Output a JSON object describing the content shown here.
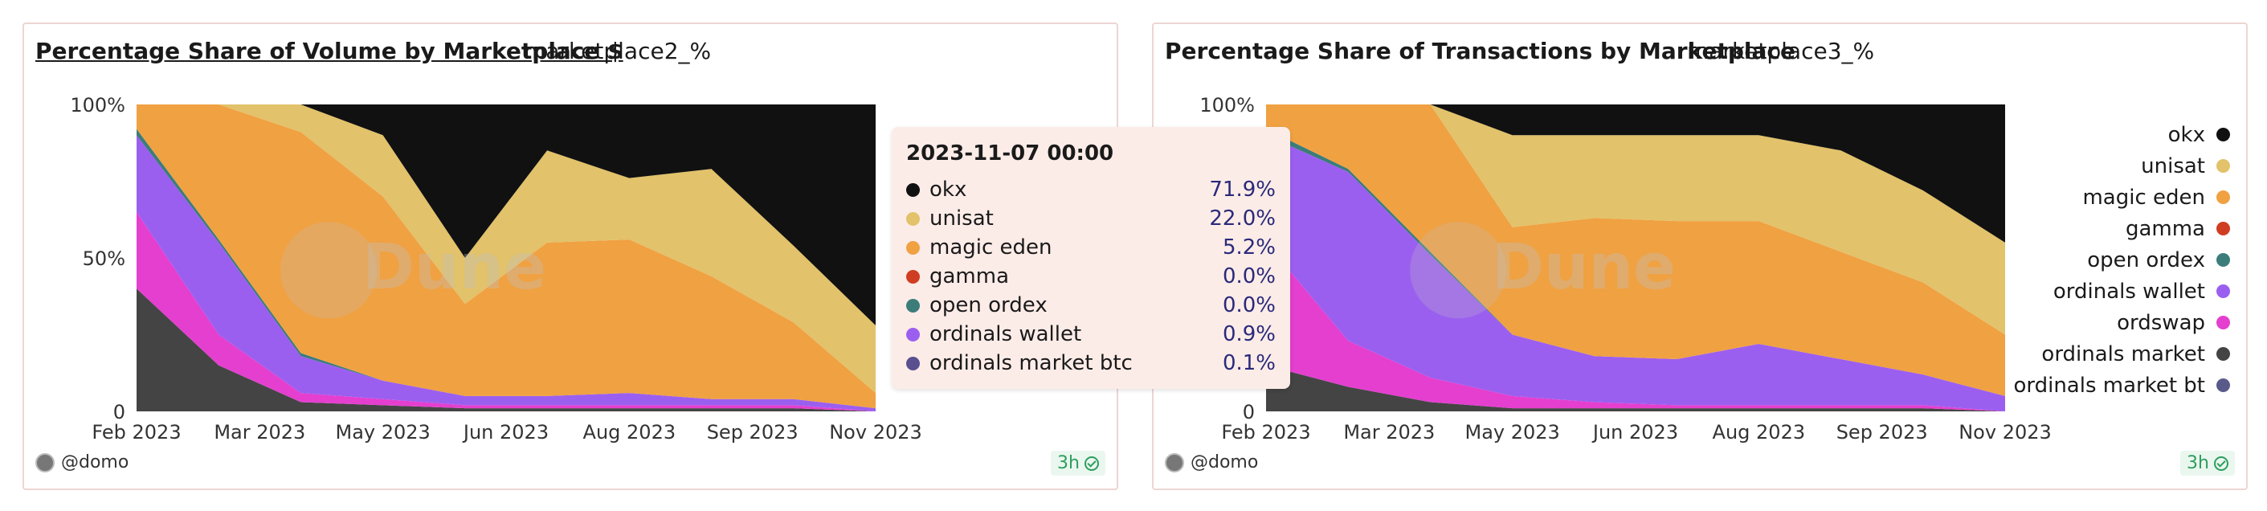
{
  "panels": [
    {
      "title": "Percentage Share of Volume by Marketplace $",
      "subtitle": "marketplace2_%",
      "user": "@domo",
      "age": "3h",
      "watermark": "Dune",
      "yticks": [
        "100%",
        "50%",
        "0"
      ],
      "xticks": [
        "Feb 2023",
        "Mar 2023",
        "May 2023",
        "Jun 2023",
        "Aug 2023",
        "Sep 2023",
        "Nov 2023"
      ]
    },
    {
      "title": "Percentage Share of Transactions by Marketplace",
      "subtitle": "marketplace3_%",
      "user": "@domo",
      "age": "3h",
      "watermark": "Dune",
      "yticks": [
        "100%",
        "50%",
        "0"
      ],
      "xticks": [
        "Feb 2023",
        "Mar 2023",
        "May 2023",
        "Jun 2023",
        "Aug 2023",
        "Sep 2023",
        "Nov 2023"
      ]
    }
  ],
  "tooltip": {
    "title": "2023-11-07 00:00",
    "rows": [
      {
        "name": "okx",
        "value": "71.9%",
        "color": "#111111"
      },
      {
        "name": "unisat",
        "value": "22.0%",
        "color": "#e2c26a"
      },
      {
        "name": "magic eden",
        "value": "5.2%",
        "color": "#f0a142"
      },
      {
        "name": "gamma",
        "value": "0.0%",
        "color": "#cf3e22"
      },
      {
        "name": "open ordex",
        "value": "0.0%",
        "color": "#3c7d7a"
      },
      {
        "name": "ordinals wallet",
        "value": "0.9%",
        "color": "#9b5ff0"
      },
      {
        "name": "ordinals market btc",
        "value": "0.1%",
        "color": "#5a4f8f"
      }
    ]
  },
  "legend": [
    {
      "name": "okx",
      "color": "#111111"
    },
    {
      "name": "unisat",
      "color": "#e2c26a"
    },
    {
      "name": "magic eden",
      "color": "#f0a142"
    },
    {
      "name": "gamma",
      "color": "#cf3e22"
    },
    {
      "name": "open ordex",
      "color": "#3c7d7a"
    },
    {
      "name": "ordinals wallet",
      "color": "#9b5ff0"
    },
    {
      "name": "ordswap",
      "color": "#e43fcf"
    },
    {
      "name": "ordinals market",
      "color": "#444444"
    },
    {
      "name": "ordinals market bt",
      "color": "#5a5a8a"
    }
  ],
  "chart_data": [
    {
      "type": "area",
      "stacked_percent": true,
      "title": "Percentage Share of Volume by Marketplace $",
      "ylim": [
        0,
        100
      ],
      "x": [
        "2023-02",
        "2023-03",
        "2023-04",
        "2023-05",
        "2023-06",
        "2023-07",
        "2023-08",
        "2023-09",
        "2023-10",
        "2023-11"
      ],
      "series": [
        {
          "name": "ordinals market",
          "color": "#444444",
          "values": [
            40,
            15,
            3,
            2,
            1,
            1,
            1,
            1,
            1,
            0
          ]
        },
        {
          "name": "ordswap",
          "color": "#e43fcf",
          "values": [
            25,
            10,
            3,
            2,
            1,
            1,
            1,
            1,
            1,
            0
          ]
        },
        {
          "name": "ordinals wallet",
          "color": "#9b5ff0",
          "values": [
            25,
            30,
            12,
            6,
            3,
            3,
            4,
            2,
            2,
            1
          ]
        },
        {
          "name": "open ordex",
          "color": "#3c7d7a",
          "values": [
            2,
            1,
            1,
            0,
            0,
            0,
            0,
            0,
            0,
            0
          ]
        },
        {
          "name": "magic eden",
          "color": "#f0a142",
          "values": [
            8,
            44,
            72,
            60,
            30,
            50,
            50,
            40,
            25,
            5
          ]
        },
        {
          "name": "unisat",
          "color": "#e2c26a",
          "values": [
            0,
            0,
            9,
            20,
            15,
            30,
            20,
            35,
            25,
            22
          ]
        },
        {
          "name": "okx",
          "color": "#111111",
          "values": [
            0,
            0,
            0,
            10,
            50,
            15,
            24,
            21,
            46,
            72
          ]
        }
      ]
    },
    {
      "type": "area",
      "stacked_percent": true,
      "title": "Percentage Share of Transactions by Marketplace",
      "ylim": [
        0,
        100
      ],
      "x": [
        "2023-02",
        "2023-03",
        "2023-04",
        "2023-05",
        "2023-06",
        "2023-07",
        "2023-08",
        "2023-09",
        "2023-10",
        "2023-11"
      ],
      "series": [
        {
          "name": "ordinals market",
          "color": "#444444",
          "values": [
            15,
            8,
            3,
            1,
            1,
            1,
            1,
            1,
            1,
            0
          ]
        },
        {
          "name": "ordswap",
          "color": "#e43fcf",
          "values": [
            40,
            15,
            8,
            4,
            2,
            1,
            1,
            1,
            1,
            0
          ]
        },
        {
          "name": "ordinals wallet",
          "color": "#9b5ff0",
          "values": [
            35,
            55,
            40,
            20,
            15,
            15,
            20,
            15,
            10,
            5
          ]
        },
        {
          "name": "open ordex",
          "color": "#3c7d7a",
          "values": [
            2,
            1,
            1,
            0,
            0,
            0,
            0,
            0,
            0,
            0
          ]
        },
        {
          "name": "magic eden",
          "color": "#f0a142",
          "values": [
            8,
            21,
            48,
            35,
            45,
            45,
            40,
            35,
            30,
            20
          ]
        },
        {
          "name": "unisat",
          "color": "#e2c26a",
          "values": [
            0,
            0,
            0,
            30,
            27,
            28,
            28,
            33,
            30,
            30
          ]
        },
        {
          "name": "okx",
          "color": "#111111",
          "values": [
            0,
            0,
            0,
            10,
            10,
            10,
            10,
            15,
            28,
            45
          ]
        }
      ]
    }
  ]
}
